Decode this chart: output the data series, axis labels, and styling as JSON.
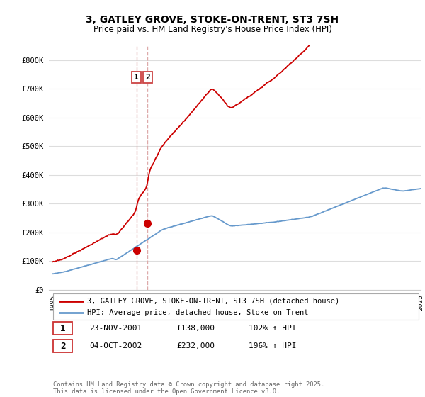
{
  "title": "3, GATLEY GROVE, STOKE-ON-TRENT, ST3 7SH",
  "subtitle": "Price paid vs. HM Land Registry's House Price Index (HPI)",
  "legend_entry1": "3, GATLEY GROVE, STOKE-ON-TRENT, ST3 7SH (detached house)",
  "legend_entry2": "HPI: Average price, detached house, Stoke-on-Trent",
  "sale1_label": "1",
  "sale1_date": "23-NOV-2001",
  "sale1_price": "£138,000",
  "sale1_hpi": "102% ↑ HPI",
  "sale2_label": "2",
  "sale2_date": "04-OCT-2002",
  "sale2_price": "£232,000",
  "sale2_hpi": "196% ↑ HPI",
  "copyright": "Contains HM Land Registry data © Crown copyright and database right 2025.\nThis data is licensed under the Open Government Licence v3.0.",
  "red_color": "#cc0000",
  "blue_color": "#6699cc",
  "vline_color": "#ddaaaa",
  "background_color": "#ffffff",
  "grid_color": "#dddddd",
  "ylim": [
    0,
    850000
  ],
  "year_start": 1995,
  "year_end": 2026
}
